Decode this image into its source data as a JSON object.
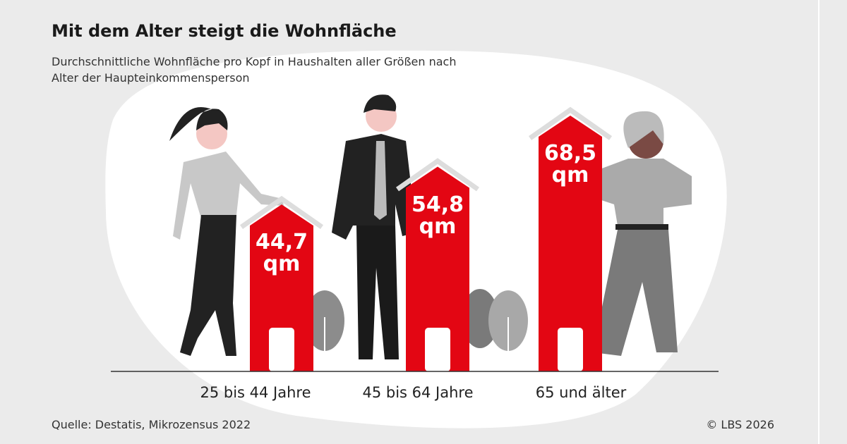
{
  "chart_data": {
    "type": "bar",
    "title": "Mit dem Alter steigt die Wohnfläche",
    "subtitle": "Durchschnittliche Wohnfläche pro Kopf in Haushalten aller Größen nach Alter der Haupteinkommensperson",
    "categories": [
      "25 bis 44 Jahre",
      "45 bis 64 Jahre",
      "65 und älter"
    ],
    "values": [
      44.7,
      54.8,
      68.5
    ],
    "value_labels": [
      "44,7 qm",
      "54,8 qm",
      "68,5 qm"
    ],
    "color": "#e30613",
    "source": "Quelle: Destatis, Mikrozensus 2022",
    "copyright": "© LBS 2026"
  }
}
